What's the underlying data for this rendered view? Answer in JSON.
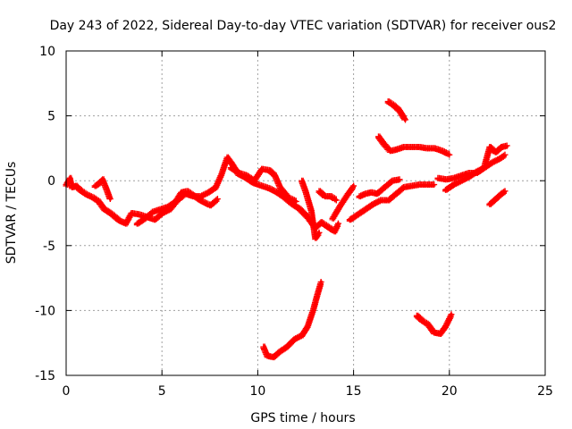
{
  "chart_data": {
    "type": "scatter",
    "title": "Day 243 of 2022, Sidereal Day-to-day VTEC variation (SDTVAR) for receiver ous2",
    "xlabel": "GPS time / hours",
    "ylabel": "SDTVAR / TECUs",
    "xlim": [
      0,
      25
    ],
    "ylim": [
      -15,
      10
    ],
    "xticks": [
      "0",
      "5",
      "10",
      "15",
      "20",
      "25"
    ],
    "xtick_values": [
      0,
      5,
      10,
      15,
      20,
      25
    ],
    "yticks": [
      "10",
      "5",
      "0",
      "-5",
      "-10",
      "-15"
    ],
    "ytick_values": [
      10,
      5,
      0,
      -5,
      -10,
      -15
    ],
    "grid": true,
    "marker": "+",
    "series": [
      {
        "name": "SDTVAR",
        "color": "#ff0000",
        "segments": [
          [
            [
              0.0,
              -0.3
            ],
            [
              0.2,
              0.2
            ],
            [
              0.3,
              -0.5
            ],
            [
              0.5,
              -0.4
            ],
            [
              0.8,
              -0.8
            ],
            [
              1.1,
              -1.1
            ],
            [
              1.4,
              -1.3
            ],
            [
              1.7,
              -1.6
            ],
            [
              2.0,
              -2.2
            ],
            [
              2.4,
              -2.6
            ],
            [
              2.8,
              -3.1
            ],
            [
              3.1,
              -3.3
            ],
            [
              3.4,
              -2.5
            ],
            [
              3.8,
              -2.6
            ],
            [
              4.2,
              -2.8
            ],
            [
              4.6,
              -3.0
            ],
            [
              5.0,
              -2.5
            ],
            [
              5.4,
              -2.2
            ],
            [
              5.8,
              -1.5
            ],
            [
              6.2,
              -1.0
            ],
            [
              6.6,
              -1.2
            ],
            [
              7.0,
              -1.2
            ],
            [
              7.4,
              -0.9
            ],
            [
              7.8,
              -0.5
            ],
            [
              8.1,
              0.5
            ],
            [
              8.4,
              1.8
            ],
            [
              8.7,
              1.2
            ],
            [
              9.0,
              0.5
            ],
            [
              9.4,
              0.2
            ],
            [
              9.8,
              -0.2
            ],
            [
              10.2,
              -0.4
            ],
            [
              10.6,
              -0.6
            ],
            [
              11.0,
              -0.9
            ],
            [
              11.4,
              -1.3
            ],
            [
              11.8,
              -1.8
            ],
            [
              12.2,
              -2.2
            ],
            [
              12.6,
              -2.8
            ],
            [
              13.0,
              -3.6
            ],
            [
              13.3,
              -3.2
            ],
            [
              13.6,
              -3.5
            ],
            [
              14.0,
              -3.9
            ],
            [
              14.2,
              -3.3
            ]
          ],
          [
            [
              1.5,
              -0.4
            ],
            [
              1.7,
              -0.2
            ],
            [
              1.9,
              0.1
            ],
            [
              2.1,
              -0.6
            ],
            [
              2.3,
              -1.4
            ]
          ],
          [
            [
              3.7,
              -3.3
            ],
            [
              4.1,
              -2.9
            ],
            [
              4.5,
              -2.4
            ],
            [
              4.9,
              -2.2
            ],
            [
              5.3,
              -2.0
            ],
            [
              5.7,
              -1.6
            ],
            [
              6.0,
              -0.9
            ],
            [
              6.3,
              -0.8
            ],
            [
              6.7,
              -1.2
            ],
            [
              7.1,
              -1.6
            ],
            [
              7.5,
              -1.9
            ],
            [
              7.9,
              -1.4
            ]
          ],
          [
            [
              8.6,
              1.0
            ],
            [
              9.0,
              0.6
            ],
            [
              9.4,
              0.4
            ],
            [
              9.8,
              0.0
            ],
            [
              10.2,
              0.9
            ],
            [
              10.6,
              0.8
            ],
            [
              10.9,
              0.4
            ],
            [
              11.2,
              -0.6
            ],
            [
              11.6,
              -1.3
            ],
            [
              12.0,
              -1.6
            ]
          ],
          [
            [
              12.3,
              0.0
            ],
            [
              12.5,
              -0.8
            ],
            [
              12.8,
              -2.3
            ],
            [
              13.0,
              -4.4
            ],
            [
              13.2,
              -4.0
            ]
          ],
          [
            [
              13.2,
              -0.8
            ],
            [
              13.5,
              -1.2
            ],
            [
              13.8,
              -1.2
            ],
            [
              14.1,
              -1.5
            ]
          ],
          [
            [
              14.8,
              -3.0
            ],
            [
              15.2,
              -2.6
            ],
            [
              15.6,
              -2.2
            ],
            [
              16.0,
              -1.8
            ],
            [
              16.4,
              -1.5
            ],
            [
              16.8,
              -1.5
            ],
            [
              17.2,
              -1.0
            ],
            [
              17.6,
              -0.5
            ],
            [
              18.0,
              -0.4
            ],
            [
              18.4,
              -0.3
            ],
            [
              18.8,
              -0.3
            ],
            [
              19.2,
              -0.3
            ]
          ],
          [
            [
              15.3,
              -1.2
            ],
            [
              15.6,
              -1.0
            ],
            [
              15.9,
              -0.9
            ],
            [
              16.2,
              -1.0
            ],
            [
              16.6,
              -0.5
            ],
            [
              17.0,
              0.0
            ],
            [
              17.4,
              0.1
            ]
          ],
          [
            [
              13.9,
              -2.9
            ],
            [
              14.3,
              -1.9
            ],
            [
              14.7,
              -1.0
            ],
            [
              15.0,
              -0.4
            ]
          ],
          [
            [
              16.3,
              3.4
            ],
            [
              16.6,
              2.8
            ],
            [
              16.9,
              2.3
            ],
            [
              17.2,
              2.4
            ],
            [
              17.6,
              2.6
            ],
            [
              18.0,
              2.6
            ],
            [
              18.4,
              2.6
            ],
            [
              18.8,
              2.5
            ],
            [
              19.2,
              2.5
            ],
            [
              19.6,
              2.3
            ],
            [
              20.0,
              2.0
            ]
          ],
          [
            [
              16.8,
              6.1
            ],
            [
              17.1,
              5.8
            ],
            [
              17.4,
              5.4
            ],
            [
              17.7,
              4.7
            ]
          ],
          [
            [
              19.4,
              0.2
            ],
            [
              19.8,
              0.1
            ],
            [
              20.2,
              0.2
            ],
            [
              20.6,
              0.4
            ],
            [
              21.0,
              0.6
            ],
            [
              21.4,
              0.6
            ],
            [
              21.8,
              1.0
            ],
            [
              22.1,
              2.6
            ],
            [
              22.4,
              2.2
            ],
            [
              22.7,
              2.6
            ],
            [
              23.0,
              2.7
            ]
          ],
          [
            [
              19.8,
              -0.7
            ],
            [
              20.2,
              -0.3
            ],
            [
              20.6,
              0.0
            ],
            [
              21.0,
              0.3
            ],
            [
              21.4,
              0.7
            ],
            [
              21.8,
              1.0
            ],
            [
              22.2,
              1.4
            ],
            [
              22.6,
              1.7
            ],
            [
              22.9,
              2.0
            ]
          ],
          [
            [
              22.1,
              -1.8
            ],
            [
              22.4,
              -1.4
            ],
            [
              22.7,
              -1.0
            ],
            [
              22.9,
              -0.8
            ]
          ],
          [
            [
              10.3,
              -12.8
            ],
            [
              10.5,
              -13.5
            ],
            [
              10.8,
              -13.6
            ],
            [
              11.1,
              -13.2
            ],
            [
              11.5,
              -12.8
            ],
            [
              11.9,
              -12.2
            ],
            [
              12.3,
              -11.9
            ],
            [
              12.6,
              -11.2
            ],
            [
              12.9,
              -9.9
            ],
            [
              13.1,
              -8.8
            ],
            [
              13.3,
              -7.8
            ]
          ],
          [
            [
              18.3,
              -10.4
            ],
            [
              18.6,
              -10.8
            ],
            [
              18.9,
              -11.1
            ],
            [
              19.2,
              -11.7
            ],
            [
              19.5,
              -11.8
            ],
            [
              19.8,
              -11.2
            ],
            [
              20.1,
              -10.3
            ]
          ]
        ]
      }
    ]
  }
}
